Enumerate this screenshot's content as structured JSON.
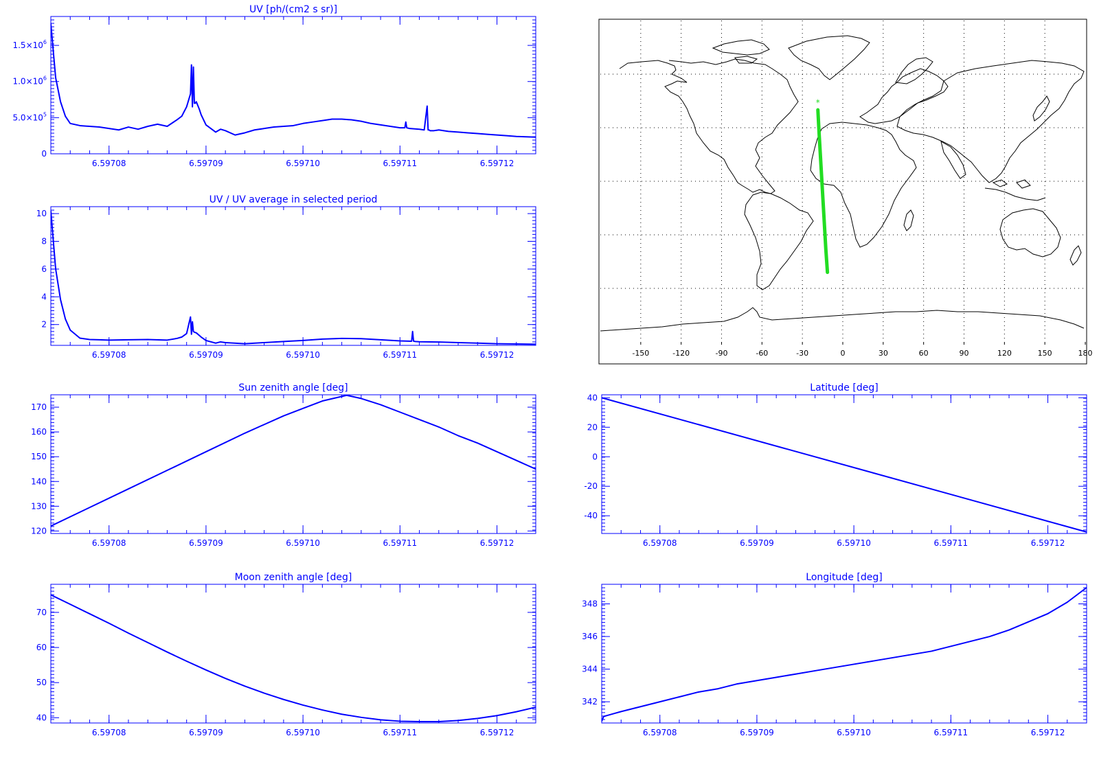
{
  "chart_data": [
    {
      "id": "uv",
      "type": "line",
      "title": "UV [ph/(cm2 s sr)]",
      "xlabel": "",
      "ylabel": "",
      "xlim": [
        6.597074,
        6.597124
      ],
      "ylim": [
        0,
        1900000.0
      ],
      "xticks": [
        {
          "v": 6.59708,
          "label": "6.59708"
        },
        {
          "v": 6.59709,
          "label": "6.59709"
        },
        {
          "v": 6.5971,
          "label": "6.59710"
        },
        {
          "v": 6.59711,
          "label": "6.59711"
        },
        {
          "v": 6.59712,
          "label": "6.59712"
        }
      ],
      "yticks": [
        {
          "v": 0,
          "label": "0",
          "base": "0",
          "exp": ""
        },
        {
          "v": 500000.0,
          "label": "5.0x10^5",
          "base": "5.0×10",
          "exp": "5"
        },
        {
          "v": 1000000.0,
          "label": "1.0x10^6",
          "base": "1.0×10",
          "exp": "6"
        },
        {
          "v": 1500000.0,
          "label": "1.5x10^6",
          "base": "1.5×10",
          "exp": "6"
        }
      ],
      "series": [
        {
          "color": "#0000ff",
          "x": [
            6.597074,
            6.5970742,
            6.5970745,
            6.597075,
            6.5970755,
            6.597076,
            6.597077,
            6.597078,
            6.597079,
            6.59708,
            6.597081,
            6.597082,
            6.597083,
            6.597084,
            6.597085,
            6.597086,
            6.597087,
            6.5970875,
            6.597088,
            6.5970884,
            6.5970885,
            6.5970886,
            6.5970887,
            6.5970888,
            6.5970889,
            6.597089,
            6.5970893,
            6.5970895,
            6.59709,
            6.597091,
            6.5970915,
            6.597092,
            6.597093,
            6.597094,
            6.597095,
            6.597096,
            6.597097,
            6.597098,
            6.597099,
            6.5971,
            6.597101,
            6.597102,
            6.597103,
            6.597104,
            6.597105,
            6.597106,
            6.597107,
            6.597108,
            6.597109,
            6.59711,
            6.5971105,
            6.5971106,
            6.5971107,
            6.597111,
            6.597112,
            6.5971125,
            6.5971128,
            6.5971129,
            6.597113,
            6.5971131,
            6.5971135,
            6.597114,
            6.597115,
            6.597116,
            6.597117,
            6.597118,
            6.597119,
            6.59712,
            6.597121,
            6.597122,
            6.597123,
            6.597124
          ],
          "y": [
            1800000,
            1500000,
            1050000,
            720000,
            520000,
            420000,
            390000,
            380000,
            370000,
            350000,
            330000,
            370000,
            340000,
            380000,
            410000,
            380000,
            470000,
            520000,
            650000,
            830000,
            1230000,
            650000,
            1200000,
            700000,
            700000,
            720000,
            620000,
            540000,
            400000,
            300000,
            340000,
            320000,
            260000,
            290000,
            330000,
            350000,
            370000,
            380000,
            390000,
            420000,
            440000,
            460000,
            480000,
            480000,
            470000,
            450000,
            420000,
            400000,
            380000,
            360000,
            360000,
            440000,
            360000,
            350000,
            340000,
            330000,
            660000,
            330000,
            330000,
            320000,
            320000,
            330000,
            310000,
            300000,
            290000,
            280000,
            270000,
            260000,
            250000,
            240000,
            235000,
            230000
          ]
        }
      ]
    },
    {
      "id": "uvratio",
      "type": "line",
      "title": "UV / UV average in selected period",
      "xlabel": "",
      "ylabel": "",
      "xlim": [
        6.597074,
        6.597124
      ],
      "ylim": [
        0.5,
        10.5
      ],
      "xticks": [
        {
          "v": 6.59708,
          "label": "6.59708"
        },
        {
          "v": 6.59709,
          "label": "6.59709"
        },
        {
          "v": 6.5971,
          "label": "6.59710"
        },
        {
          "v": 6.59711,
          "label": "6.59711"
        },
        {
          "v": 6.59712,
          "label": "6.59712"
        }
      ],
      "yticks": [
        {
          "v": 2,
          "label": "2"
        },
        {
          "v": 4,
          "label": "4"
        },
        {
          "v": 6,
          "label": "6"
        },
        {
          "v": 8,
          "label": "8"
        },
        {
          "v": 10,
          "label": "10"
        }
      ],
      "series": [
        {
          "color": "#0000ff",
          "x": [
            6.597074,
            6.5970742,
            6.5970745,
            6.597075,
            6.5970755,
            6.597076,
            6.597077,
            6.597078,
            6.597079,
            6.59708,
            6.597082,
            6.597084,
            6.597086,
            6.597087,
            6.5970875,
            6.597088,
            6.5970884,
            6.5970885,
            6.5970886,
            6.5970887,
            6.5970888,
            6.597089,
            6.5970895,
            6.59709,
            6.597091,
            6.5970915,
            6.597092,
            6.597094,
            6.597096,
            6.597098,
            6.5971,
            6.597102,
            6.597104,
            6.597106,
            6.597108,
            6.59711,
            6.5971112,
            6.5971113,
            6.5971114,
            6.5971116,
            6.597112,
            6.597114,
            6.597116,
            6.597118,
            6.59712,
            6.597122,
            6.597124
          ],
          "y": [
            10.2,
            8.5,
            6.0,
            3.8,
            2.4,
            1.6,
            1.02,
            0.92,
            0.9,
            0.88,
            0.9,
            0.92,
            0.88,
            1.0,
            1.1,
            1.35,
            2.55,
            1.3,
            2.2,
            1.5,
            1.45,
            1.4,
            1.1,
            0.85,
            0.66,
            0.75,
            0.7,
            0.62,
            0.7,
            0.78,
            0.85,
            0.95,
            1.0,
            0.98,
            0.9,
            0.82,
            0.8,
            1.5,
            0.8,
            0.78,
            0.76,
            0.74,
            0.7,
            0.66,
            0.62,
            0.6,
            0.58
          ]
        }
      ]
    },
    {
      "id": "sza",
      "type": "line",
      "title": "Sun zenith angle [deg]",
      "xlabel": "",
      "ylabel": "",
      "xlim": [
        6.597074,
        6.597124
      ],
      "ylim": [
        119,
        175
      ],
      "xticks": [
        {
          "v": 6.59708,
          "label": "6.59708"
        },
        {
          "v": 6.59709,
          "label": "6.59709"
        },
        {
          "v": 6.5971,
          "label": "6.59710"
        },
        {
          "v": 6.59711,
          "label": "6.59711"
        },
        {
          "v": 6.59712,
          "label": "6.59712"
        }
      ],
      "yticks": [
        {
          "v": 120,
          "label": "120"
        },
        {
          "v": 130,
          "label": "130"
        },
        {
          "v": 140,
          "label": "140"
        },
        {
          "v": 150,
          "label": "150"
        },
        {
          "v": 160,
          "label": "160"
        },
        {
          "v": 170,
          "label": "170"
        }
      ],
      "series": [
        {
          "color": "#0000ff",
          "x": [
            6.597074,
            6.597078,
            6.597082,
            6.597086,
            6.59709,
            6.597094,
            6.597098,
            6.5971,
            6.597102,
            6.5971045,
            6.597106,
            6.597108,
            6.59711,
            6.597112,
            6.597114,
            6.597116,
            6.597118,
            6.59712,
            6.597122,
            6.597124
          ],
          "y": [
            122,
            129.5,
            137,
            144.5,
            152,
            159.5,
            166.5,
            169.5,
            172.5,
            174.8,
            173.5,
            171,
            168,
            165,
            162,
            158.5,
            155.5,
            152,
            148.5,
            145
          ]
        }
      ]
    },
    {
      "id": "mza",
      "type": "line",
      "title": "Moon zenith angle [deg]",
      "xlabel": "",
      "ylabel": "",
      "xlim": [
        6.597074,
        6.597124
      ],
      "ylim": [
        38.5,
        78
      ],
      "xticks": [
        {
          "v": 6.59708,
          "label": "6.59708"
        },
        {
          "v": 6.59709,
          "label": "6.59709"
        },
        {
          "v": 6.5971,
          "label": "6.59710"
        },
        {
          "v": 6.59711,
          "label": "6.59711"
        },
        {
          "v": 6.59712,
          "label": "6.59712"
        }
      ],
      "yticks": [
        {
          "v": 40,
          "label": "40"
        },
        {
          "v": 50,
          "label": "50"
        },
        {
          "v": 60,
          "label": "60"
        },
        {
          "v": 70,
          "label": "70"
        }
      ],
      "series": [
        {
          "color": "#0000ff",
          "x": [
            6.597074,
            6.597076,
            6.597078,
            6.59708,
            6.597082,
            6.597084,
            6.597086,
            6.597088,
            6.59709,
            6.597092,
            6.597094,
            6.597096,
            6.597098,
            6.5971,
            6.597102,
            6.597104,
            6.597106,
            6.597108,
            6.59711,
            6.597112,
            6.597114,
            6.597116,
            6.597118,
            6.59712,
            6.597122,
            6.597124
          ],
          "y": [
            75,
            72.3,
            69.6,
            66.9,
            64.1,
            61.4,
            58.7,
            56.1,
            53.6,
            51.2,
            49,
            47,
            45.2,
            43.6,
            42.2,
            41,
            40.1,
            39.4,
            39,
            38.9,
            38.9,
            39.2,
            39.8,
            40.6,
            41.7,
            43
          ]
        }
      ]
    },
    {
      "id": "lat",
      "type": "line",
      "title": "Latitude [deg]",
      "xlabel": "",
      "ylabel": "",
      "xlim": [
        6.597074,
        6.597124
      ],
      "ylim": [
        -52,
        42
      ],
      "xticks": [
        {
          "v": 6.59708,
          "label": "6.59708"
        },
        {
          "v": 6.59709,
          "label": "6.59709"
        },
        {
          "v": 6.5971,
          "label": "6.59710"
        },
        {
          "v": 6.59711,
          "label": "6.59711"
        },
        {
          "v": 6.59712,
          "label": "6.59712"
        }
      ],
      "yticks": [
        {
          "v": -40,
          "label": "-40"
        },
        {
          "v": -20,
          "label": "-20"
        },
        {
          "v": 0,
          "label": "0"
        },
        {
          "v": 20,
          "label": "20"
        },
        {
          "v": 40,
          "label": "40"
        }
      ],
      "series": [
        {
          "color": "#0000ff",
          "x": [
            6.597074,
            6.597124
          ],
          "y": [
            40,
            -51
          ]
        }
      ]
    },
    {
      "id": "lon",
      "type": "line",
      "title": "Longitude [deg]",
      "xlabel": "",
      "ylabel": "",
      "xlim": [
        6.597074,
        6.597124
      ],
      "ylim": [
        340.7,
        349.2
      ],
      "xticks": [
        {
          "v": 6.59708,
          "label": "6.59708"
        },
        {
          "v": 6.59709,
          "label": "6.59709"
        },
        {
          "v": 6.5971,
          "label": "6.59710"
        },
        {
          "v": 6.59711,
          "label": "6.59711"
        },
        {
          "v": 6.59712,
          "label": "6.59712"
        }
      ],
      "yticks": [
        {
          "v": 342,
          "label": "342"
        },
        {
          "v": 344,
          "label": "344"
        },
        {
          "v": 346,
          "label": "346"
        },
        {
          "v": 348,
          "label": "348"
        }
      ],
      "series": [
        {
          "color": "#0000ff",
          "x": [
            6.597074,
            6.5970742,
            6.597076,
            6.597078,
            6.59708,
            6.597082,
            6.597084,
            6.597086,
            6.597088,
            6.59709,
            6.597092,
            6.597094,
            6.597096,
            6.597098,
            6.5971,
            6.597102,
            6.597104,
            6.597106,
            6.597108,
            6.59711,
            6.597112,
            6.597114,
            6.597116,
            6.597118,
            6.59712,
            6.597122,
            6.597124
          ],
          "y": [
            340.8,
            341.1,
            341.4,
            341.7,
            342.0,
            342.3,
            342.6,
            342.8,
            343.1,
            343.3,
            343.5,
            343.7,
            343.9,
            344.1,
            344.3,
            344.5,
            344.7,
            344.9,
            345.1,
            345.4,
            345.7,
            346.0,
            346.4,
            346.9,
            347.4,
            348.1,
            349.0
          ]
        }
      ]
    },
    {
      "id": "map",
      "type": "scatter",
      "title": "",
      "xlabel": "",
      "ylabel": "",
      "xlim": [
        -180,
        180
      ],
      "ylim": [
        -90,
        90
      ],
      "xticks": [
        {
          "v": -150,
          "label": "-150"
        },
        {
          "v": -120,
          "label": "-120"
        },
        {
          "v": -90,
          "label": "-90"
        },
        {
          "v": -60,
          "label": "-60"
        },
        {
          "v": -30,
          "label": "-30"
        },
        {
          "v": 0,
          "label": "0"
        },
        {
          "v": 30,
          "label": "30"
        },
        {
          "v": 60,
          "label": "60"
        },
        {
          "v": 90,
          "label": "90"
        },
        {
          "v": 120,
          "label": "120"
        },
        {
          "v": 150,
          "label": "150"
        },
        {
          "v": 180,
          "label": "180"
        }
      ],
      "gridlines": {
        "lon": [
          -150,
          -120,
          -90,
          -60,
          -30,
          0,
          30,
          60,
          90,
          120,
          150
        ],
        "lat": [
          -60,
          -30,
          0,
          30,
          60
        ]
      },
      "grid": true,
      "track_color": "#22dd22",
      "track": {
        "lon": [
          -18.5,
          -17.6,
          -16.6,
          -15.6,
          -14.6,
          -13.6,
          -12.6,
          -11.4
        ],
        "lat": [
          40,
          27,
          14,
          1,
          -12,
          -25,
          -38,
          -51
        ]
      },
      "track_start_marker": {
        "lon": -18.5,
        "lat": 44,
        "symbol": "*"
      }
    }
  ]
}
